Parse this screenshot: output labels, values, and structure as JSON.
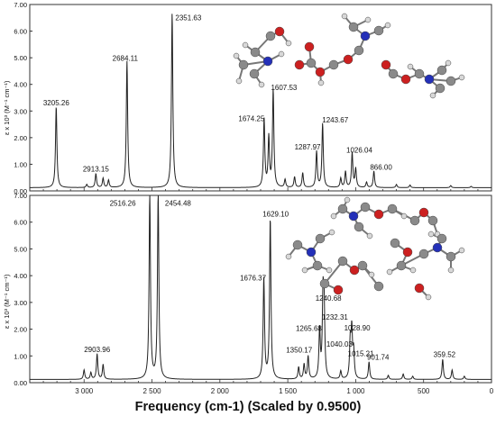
{
  "x_axis_label": "Frequency (cm-1) (Scaled by 0.9500)",
  "y_axis_label": "ε x 10³ (M⁻¹ cm⁻¹)",
  "chart_data": [
    {
      "type": "line",
      "panel": "top",
      "xlabel": "Frequency (cm-1) (Scaled by 0.9500)",
      "ylabel": "ε x 10³ (M⁻¹ cm⁻¹)",
      "xlim": [
        3400,
        0
      ],
      "ylim": [
        0,
        7.0
      ],
      "x_reversed": true,
      "y_ticks": [
        "0.00",
        "1.00",
        "2.00",
        "3.00",
        "4.00",
        "5.00",
        "6.00",
        "7.00"
      ],
      "peaks": [
        {
          "x": 3205.26,
          "y": 3.05,
          "label": "3205.26"
        },
        {
          "x": 2913.15,
          "y": 0.52,
          "label": "2913.15"
        },
        {
          "x": 2684.11,
          "y": 4.75,
          "label": "2684.11"
        },
        {
          "x": 2351.63,
          "y": 6.55,
          "label": "2351.63"
        },
        {
          "x": 1674.25,
          "y": 2.55,
          "label": "1674.25"
        },
        {
          "x": 1607.53,
          "y": 3.65,
          "label": "1607.53"
        },
        {
          "x": 1287.97,
          "y": 1.35,
          "label": "1287.97"
        },
        {
          "x": 1243.67,
          "y": 2.4,
          "label": "1243.67"
        },
        {
          "x": 1026.04,
          "y": 1.3,
          "label": "1026.04"
        },
        {
          "x": 866.0,
          "y": 0.62,
          "label": "866.00"
        }
      ],
      "minor_peaks": [
        {
          "x": 2980,
          "y": 0.12
        },
        {
          "x": 2860,
          "y": 0.35
        },
        {
          "x": 2820,
          "y": 0.28
        },
        {
          "x": 1640,
          "y": 1.85
        },
        {
          "x": 1520,
          "y": 0.3
        },
        {
          "x": 1450,
          "y": 0.4
        },
        {
          "x": 1390,
          "y": 0.55
        },
        {
          "x": 1110,
          "y": 0.35
        },
        {
          "x": 1075,
          "y": 0.6
        },
        {
          "x": 1000,
          "y": 0.7
        },
        {
          "x": 920,
          "y": 0.2
        },
        {
          "x": 700,
          "y": 0.12
        },
        {
          "x": 600,
          "y": 0.1
        },
        {
          "x": 300,
          "y": 0.08
        },
        {
          "x": 150,
          "y": 0.05
        }
      ]
    },
    {
      "type": "line",
      "panel": "bottom",
      "xlabel": "Frequency (cm-1) (Scaled by 0.9500)",
      "ylabel": "ε x 10³ (M⁻¹ cm⁻¹)",
      "xlim": [
        3400,
        0
      ],
      "ylim": [
        0,
        7.0
      ],
      "x_reversed": true,
      "x_ticks": [
        "3 000",
        "2 500",
        "2 000",
        "1 500",
        "1 000",
        "500",
        "0"
      ],
      "x_tick_values": [
        3000,
        2500,
        2000,
        1500,
        1000,
        500,
        0
      ],
      "y_ticks": [
        "0.00",
        "1.00",
        "2.00",
        "3.00",
        "4.00",
        "5.00",
        "6.00",
        "7.00"
      ],
      "peaks": [
        {
          "x": 2903.96,
          "y": 0.95,
          "label": "2903.96"
        },
        {
          "x": 2516.26,
          "y": 6.95,
          "label": "2516.26"
        },
        {
          "x": 2454.48,
          "y": 6.95,
          "label": "2454.48"
        },
        {
          "x": 1676.37,
          "y": 3.75,
          "label": "1676.37"
        },
        {
          "x": 1629.1,
          "y": 6.0,
          "label": "1629.10"
        },
        {
          "x": 1350.17,
          "y": 0.85,
          "label": "1350.17"
        },
        {
          "x": 1265.68,
          "y": 1.8,
          "label": "1265.68"
        },
        {
          "x": 1240.68,
          "y": 2.9,
          "label": "1240.68"
        },
        {
          "x": 1232.31,
          "y": 2.35,
          "label": "1232.31"
        },
        {
          "x": 1040.03,
          "y": 1.35,
          "label": "1040.03"
        },
        {
          "x": 1028.9,
          "y": 1.75,
          "label": "1028.90"
        },
        {
          "x": 1015.21,
          "y": 1.0,
          "label": "1015.21"
        },
        {
          "x": 901.74,
          "y": 0.65,
          "label": "901.74"
        },
        {
          "x": 359.52,
          "y": 0.75,
          "label": "359.52"
        }
      ],
      "minor_peaks": [
        {
          "x": 3000,
          "y": 0.35
        },
        {
          "x": 2950,
          "y": 0.25
        },
        {
          "x": 2860,
          "y": 0.55
        },
        {
          "x": 1420,
          "y": 0.45
        },
        {
          "x": 1380,
          "y": 0.55
        },
        {
          "x": 1110,
          "y": 0.3
        },
        {
          "x": 760,
          "y": 0.15
        },
        {
          "x": 650,
          "y": 0.2
        },
        {
          "x": 580,
          "y": 0.12
        },
        {
          "x": 290,
          "y": 0.35
        },
        {
          "x": 200,
          "y": 0.12
        }
      ]
    }
  ]
}
